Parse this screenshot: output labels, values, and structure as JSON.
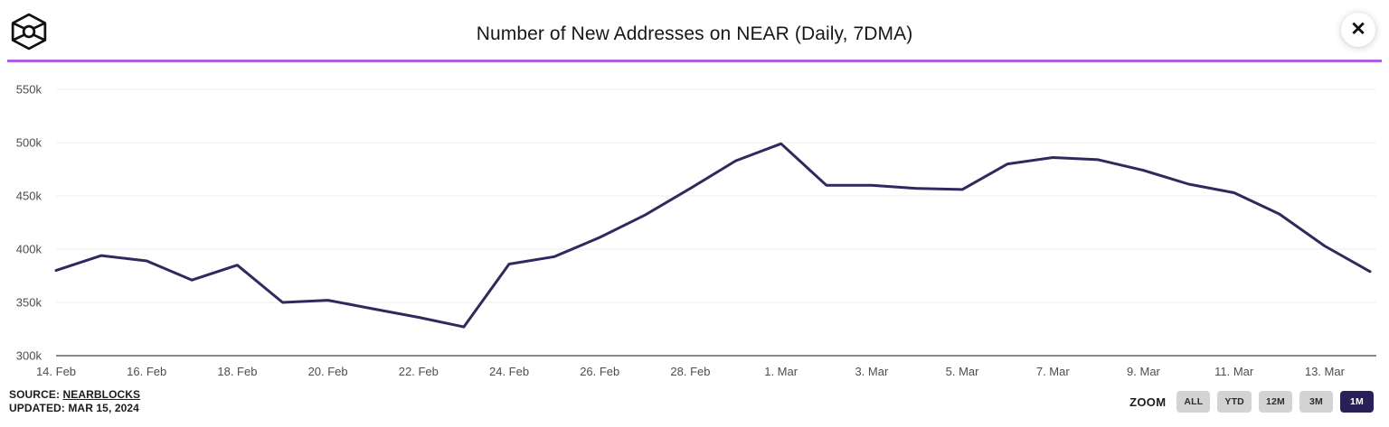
{
  "header": {
    "title": "Number of New Addresses on NEAR (Daily, 7DMA)",
    "close_label": "✕",
    "accent_line_color": "#b15ee2"
  },
  "footer": {
    "source_label": "SOURCE:",
    "source_value": "NEARBLOCKS",
    "updated": "UPDATED: MAR 15, 2024",
    "zoom_label": "ZOOM",
    "zoom_buttons": [
      {
        "label": "ALL",
        "selected": false
      },
      {
        "label": "YTD",
        "selected": false
      },
      {
        "label": "12M",
        "selected": false
      },
      {
        "label": "3M",
        "selected": false
      },
      {
        "label": "1M",
        "selected": true
      }
    ]
  },
  "chart_data": {
    "type": "line",
    "title": "Number of New Addresses on NEAR (Daily, 7DMA)",
    "x": [
      "14. Feb",
      "15. Feb",
      "16. Feb",
      "17. Feb",
      "18. Feb",
      "19. Feb",
      "20. Feb",
      "21. Feb",
      "22. Feb",
      "23. Feb",
      "24. Feb",
      "25. Feb",
      "26. Feb",
      "27. Feb",
      "28. Feb",
      "29. Feb",
      "1. Mar",
      "2. Mar",
      "3. Mar",
      "4. Mar",
      "5. Mar",
      "6. Mar",
      "7. Mar",
      "8. Mar",
      "9. Mar",
      "10. Mar",
      "11. Mar",
      "12. Mar",
      "13. Mar",
      "14. Mar"
    ],
    "values": [
      380000,
      394000,
      389000,
      371000,
      385000,
      350000,
      352000,
      344000,
      336000,
      327000,
      386000,
      393000,
      411000,
      432000,
      457000,
      483000,
      499000,
      460000,
      460000,
      457000,
      456000,
      480000,
      486000,
      484000,
      474000,
      461000,
      453000,
      433000,
      403000,
      379000
    ],
    "visible_x_tick_labels": [
      "14. Feb",
      "16. Feb",
      "18. Feb",
      "20. Feb",
      "22. Feb",
      "24. Feb",
      "26. Feb",
      "28. Feb",
      "1. Mar",
      "3. Mar",
      "5. Mar",
      "7. Mar",
      "9. Mar",
      "11. Mar",
      "13. Mar"
    ],
    "y_tick_values": [
      300000,
      350000,
      400000,
      450000,
      500000,
      550000
    ],
    "y_tick_labels": [
      "300k",
      "350k",
      "400k",
      "450k",
      "500k",
      "550k"
    ],
    "ylim": [
      300000,
      550000
    ],
    "xlabel": "",
    "ylabel": "",
    "grid": true,
    "legend_position": "none",
    "line_color": "#2f2a5e",
    "gridline_color": "#ededed",
    "baseline_color": "#888888",
    "tick_text_color": "#4d4d4d"
  }
}
